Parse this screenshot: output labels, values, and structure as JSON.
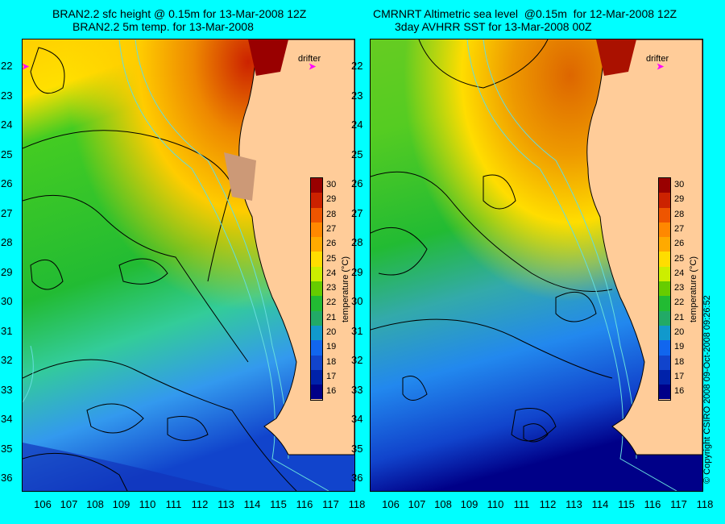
{
  "left": {
    "title_line1": "BRAN2.2 sfc height @ 0.15m for 13-Mar-2008 12Z",
    "title_line2": "BRAN2.2 5m temp. for 13-Mar-2008"
  },
  "right": {
    "title_line1": "CMRNRT Altimetric sea level  @0.15m  for 12-Mar-2008 12Z",
    "title_line2": "3day AVHRR SST for 13-Mar-2008 00Z"
  },
  "drifter_label": "drifter",
  "colorbar": {
    "title": "temperature (°C)",
    "ticks": [
      "30",
      "29",
      "28",
      "27",
      "26",
      "25",
      "24",
      "23",
      "22",
      "21",
      "20",
      "19",
      "18",
      "17",
      "16"
    ]
  },
  "lat_labels": [
    "22",
    "23",
    "24",
    "25",
    "26",
    "27",
    "28",
    "29",
    "30",
    "31",
    "32",
    "33",
    "34",
    "35",
    "36"
  ],
  "lon_labels": [
    "106",
    "107",
    "108",
    "109",
    "110",
    "111",
    "112",
    "113",
    "114",
    "115",
    "116",
    "117",
    "118"
  ],
  "copyright": "© Copyright CSIRO 2008   09-Oct-2008 09:26:52",
  "colors": {
    "background": "#00ffff",
    "land": "#ffcc99",
    "warm": "#b40000",
    "cold": "#00008c"
  }
}
